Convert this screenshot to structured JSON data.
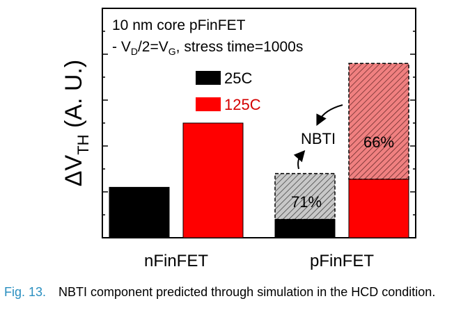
{
  "chart_data": {
    "type": "bar",
    "title_lines": [
      "10 nm core pFinFET",
      "- V_D/2=V_G, stress time=1000s"
    ],
    "ylabel": "ΔV_TH (A. U.)",
    "xlabel": "",
    "categories": [
      "nFinFET",
      "pFinFET"
    ],
    "ylim": [
      0,
      10
    ],
    "yticks": [
      0,
      1,
      2,
      3,
      4,
      5,
      6,
      7,
      8,
      9,
      10
    ],
    "grid": false,
    "legend_position": "top-center",
    "series": [
      {
        "name": "25C",
        "color": "#000000",
        "values": [
          2.2,
          0.8
        ],
        "nbti_total": [
          null,
          2.8
        ]
      },
      {
        "name": "125C",
        "color": "#ff0000",
        "values": [
          5.0,
          2.55
        ],
        "nbti_total": [
          null,
          7.6
        ]
      }
    ],
    "annotations": [
      {
        "text": "NBTI",
        "category": "pFinFET"
      },
      {
        "text": "71%",
        "category": "pFinFET",
        "series": "25C"
      },
      {
        "text": "66%",
        "category": "pFinFET",
        "series": "125C"
      }
    ]
  },
  "caption": {
    "label": "Fig. 13.",
    "text": "NBTI component predicted through simulation in the HCD condition."
  }
}
